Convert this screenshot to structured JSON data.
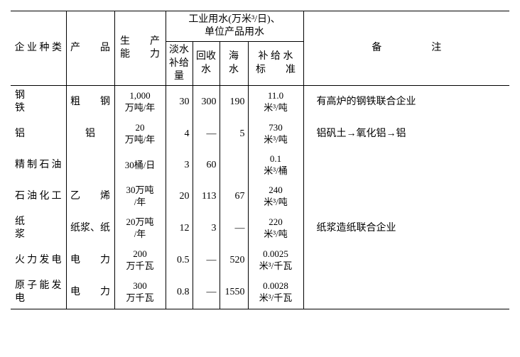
{
  "header": {
    "category": "企 业 种 类",
    "product": "产　　品",
    "capacity": "生　　产\n能　　力",
    "water_group": "工业用水(万米³/日)、\n单位产品用水",
    "fresh": "淡水\n补给\n量",
    "recycle": "回收\n水",
    "sea": "海\n水",
    "standard": "补 给 水\n标　　准",
    "note": "备　　　　　注"
  },
  "rows": [
    {
      "category": "钢　　　铁",
      "product": "粗　　钢",
      "capacity": "1,000\n万吨/年",
      "fresh": "30",
      "recycle": "300",
      "sea": "190",
      "standard": "11.0\n米³/吨",
      "note": "　有高炉的钢铁联合企业"
    },
    {
      "category": "铝",
      "product": "铝",
      "capacity": "20\n万吨/年",
      "fresh": "4",
      "recycle": "—",
      "sea": "5",
      "standard": "730\n米³/吨",
      "note": "　铝矾土→氧化铝→铝"
    },
    {
      "category": "精制石油",
      "product": "",
      "capacity": "30桶/日",
      "fresh": "3",
      "recycle": "60",
      "sea": "",
      "standard": "0.1\n米³/桶",
      "note": ""
    },
    {
      "category": "石油化工",
      "product": "乙　　烯",
      "capacity": "30万吨\n/年",
      "fresh": "20",
      "recycle": "113",
      "sea": "67",
      "standard": "240\n米³/吨",
      "note": ""
    },
    {
      "category": "纸　　　浆",
      "product": "纸浆、纸",
      "capacity": "20万吨\n/年",
      "fresh": "12",
      "recycle": "3",
      "sea": "—",
      "standard": "220\n米³/吨",
      "note": "　纸浆造纸联合企业"
    },
    {
      "category": "火力发电",
      "product": "电　　力",
      "capacity": "200\n万千瓦",
      "fresh": "0.5",
      "recycle": "—",
      "sea": "520",
      "standard": "0.0025\n米³/千瓦",
      "note": ""
    },
    {
      "category": "原子能发电",
      "product": "电　　力",
      "capacity": "300\n万千瓦",
      "fresh": "0.8",
      "recycle": "—",
      "sea": "1550",
      "standard": "0.0028\n米³/千瓦",
      "note": ""
    }
  ],
  "style": {
    "font_size_main": 14,
    "font_size_small": 13,
    "border_color": "#000000",
    "background": "#ffffff",
    "text_color": "#000000"
  }
}
